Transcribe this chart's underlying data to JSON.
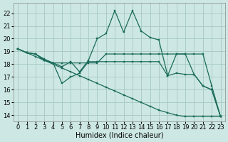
{
  "xlabel": "Humidex (Indice chaleur)",
  "ylabel": "",
  "xlim": [
    -0.5,
    23.5
  ],
  "ylim": [
    13.5,
    22.8
  ],
  "xticks": [
    0,
    1,
    2,
    3,
    4,
    5,
    6,
    7,
    8,
    9,
    10,
    11,
    12,
    13,
    14,
    15,
    16,
    17,
    18,
    19,
    20,
    21,
    22,
    23
  ],
  "yticks": [
    14,
    15,
    16,
    17,
    18,
    19,
    20,
    21,
    22
  ],
  "background_color": "#cde8e4",
  "grid_color": "#aaccc6",
  "line_color": "#1a6b5a",
  "series": [
    {
      "x": [
        0,
        1,
        2,
        3,
        4,
        5,
        6,
        7,
        8,
        9,
        10,
        11,
        12,
        13,
        14,
        15,
        16,
        17,
        18,
        19,
        20,
        21,
        22,
        23
      ],
      "y": [
        19.2,
        18.9,
        18.8,
        18.3,
        18.1,
        17.8,
        18.2,
        17.4,
        18.3,
        20.0,
        20.4,
        22.2,
        20.5,
        22.2,
        20.6,
        20.1,
        19.9,
        17.1,
        18.8,
        18.8,
        17.2,
        16.3,
        16.0,
        13.9
      ]
    },
    {
      "x": [
        0,
        1,
        2,
        3,
        4,
        5,
        6,
        7,
        8,
        9,
        10,
        11,
        12,
        13,
        14,
        15,
        16,
        17,
        18,
        19,
        20,
        21,
        22,
        23
      ],
      "y": [
        19.2,
        18.9,
        18.8,
        18.4,
        18.1,
        18.1,
        18.1,
        18.1,
        18.1,
        18.1,
        18.8,
        18.8,
        18.8,
        18.8,
        18.8,
        18.8,
        18.8,
        18.8,
        18.8,
        18.8,
        18.8,
        18.8,
        16.3,
        13.9
      ]
    },
    {
      "x": [
        0,
        1,
        2,
        3,
        4,
        5,
        6,
        7,
        8,
        9,
        10,
        11,
        12,
        13,
        14,
        15,
        16,
        17,
        18,
        19,
        20,
        21,
        22,
        23
      ],
      "y": [
        19.2,
        18.9,
        18.6,
        18.3,
        18.0,
        17.7,
        17.4,
        17.1,
        16.8,
        16.5,
        16.2,
        15.9,
        15.6,
        15.3,
        15.0,
        14.7,
        14.4,
        14.2,
        14.0,
        13.9,
        13.9,
        13.9,
        13.9,
        13.9
      ]
    },
    {
      "x": [
        0,
        1,
        2,
        3,
        4,
        5,
        6,
        7,
        8,
        9,
        10,
        11,
        12,
        13,
        14,
        15,
        16,
        17,
        18,
        19,
        20,
        21,
        22,
        23
      ],
      "y": [
        19.2,
        18.9,
        18.8,
        18.3,
        18.1,
        16.5,
        17.0,
        17.3,
        18.2,
        18.2,
        18.2,
        18.2,
        18.2,
        18.2,
        18.2,
        18.2,
        18.2,
        17.1,
        17.3,
        17.2,
        17.2,
        16.3,
        16.0,
        13.9
      ]
    }
  ],
  "tick_fontsize": 6,
  "label_fontsize": 7
}
